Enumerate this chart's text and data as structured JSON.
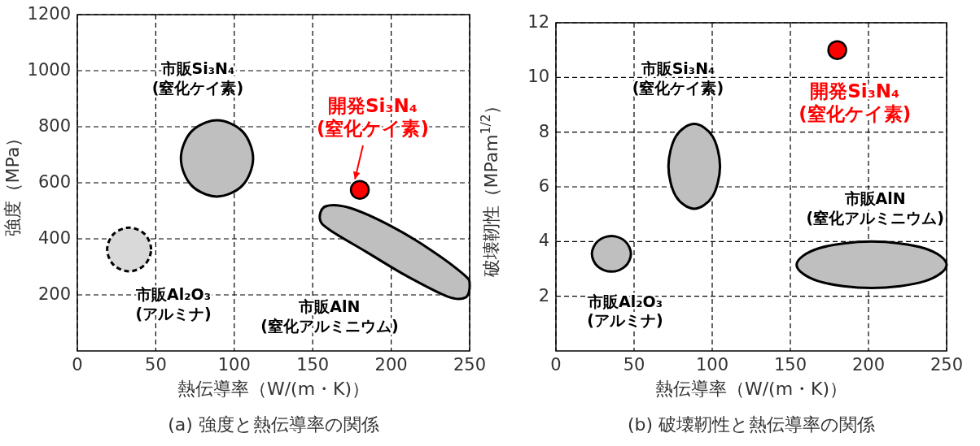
{
  "chart_data": [
    {
      "type": "area",
      "title": "(a) 強度と熱伝導率の関係",
      "xlabel": "熱伝導率（W/(m・K)）",
      "ylabel": "強度（MPa）",
      "xlim": [
        0,
        250
      ],
      "ylim": [
        0,
        1200
      ],
      "xticks": [
        0,
        50,
        100,
        150,
        200,
        250
      ],
      "yticks": [
        200,
        400,
        600,
        800,
        1000,
        1200
      ],
      "grid": true,
      "series": [
        {
          "name": "市販Si₃N₄\n(窒化ケイ素)",
          "color": "#bfbfbf",
          "x": [
            112,
            105.3,
            89,
            72.7,
            66,
            72.7,
            89,
            105.3
          ],
          "values": [
            687,
            783,
            823,
            783,
            687,
            591,
            551,
            591
          ],
          "line_style": "solid"
        },
        {
          "name": "市販Al₂O₃\n(アルミナ)",
          "color": "#d9d9d9",
          "x": [
            47,
            42.9,
            33,
            23.1,
            19,
            23.1,
            33,
            42.9
          ],
          "values": [
            362,
            417,
            440,
            417,
            362,
            307,
            284,
            307
          ],
          "line_style": "dashed"
        },
        {
          "name": "市販AlN\n(窒化アルミニウム)",
          "color": "#bfbfbf",
          "x": [
            154.6,
            158.2,
            173.8,
            199.7,
            225.6,
            246.4,
            250,
            247.4,
            236,
            210,
            184,
            160.8
          ],
          "values": [
            470,
            516,
            510,
            446,
            359,
            272,
            238,
            191,
            194,
            267,
            354,
            432
          ],
          "line_style": "solid"
        },
        {
          "type": "scatter",
          "name": "開発Si₃N₄\n(窒化ケイ素)",
          "color": "#ff0000",
          "x": [
            180
          ],
          "values": [
            575
          ],
          "marker": "circle"
        }
      ]
    },
    {
      "type": "area",
      "title": "(b) 破壊靭性と熱伝導率の関係",
      "xlabel": "熱伝導率（W/(m・K)）",
      "ylabel": "破壊靭性（MPam$^{1/2}$）",
      "xlim": [
        0,
        250
      ],
      "ylim": [
        0,
        12
      ],
      "xticks": [
        0,
        50,
        100,
        150,
        200,
        250
      ],
      "yticks": [
        2,
        4,
        6,
        8,
        10,
        12
      ],
      "grid": true,
      "series": [
        {
          "name": "市販Si₃N₄\n(窒化ケイ素)",
          "color": "#bfbfbf",
          "x": [
            105,
            100.2,
            88.5,
            76.8,
            72,
            76.8,
            88.5,
            100.2
          ],
          "values": [
            6.75,
            7.85,
            8.3,
            7.85,
            6.75,
            5.65,
            5.2,
            5.65
          ],
          "line_style": "solid"
        },
        {
          "name": "市販Al₂O₃\n(アルミナ)",
          "color": "#bfbfbf",
          "x": [
            48,
            44.3,
            35.5,
            26.7,
            23,
            26.7,
            35.5,
            44.3
          ],
          "values": [
            3.55,
            4.01,
            4.2,
            4.01,
            3.55,
            3.09,
            2.9,
            3.09
          ],
          "line_style": "solid"
        },
        {
          "name": "市販AlN\n(窒化アルミニウム)",
          "color": "#bfbfbf",
          "x": [
            250,
            236,
            202,
            168,
            154,
            168,
            202,
            236
          ],
          "values": [
            3.15,
            3.75,
            4.0,
            3.75,
            3.15,
            2.55,
            2.3,
            2.55
          ],
          "line_style": "solid"
        },
        {
          "type": "scatter",
          "name": "開発Si₃N₄\n(窒化ケイ素)",
          "color": "#ff0000",
          "x": [
            180
          ],
          "values": [
            11
          ],
          "marker": "circle"
        }
      ]
    }
  ]
}
